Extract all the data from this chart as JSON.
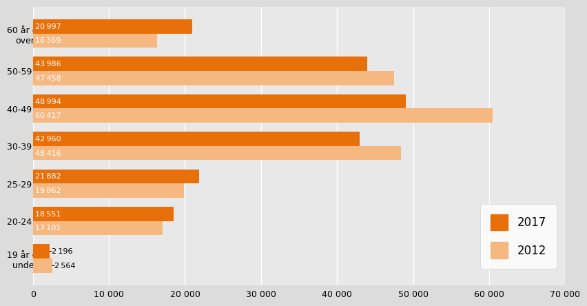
{
  "categories": [
    "19 år og\nunder",
    "20-24 år",
    "25-29 år",
    "30-39 år",
    "40-49 år",
    "50-59 år",
    "60 år og\nover"
  ],
  "values_2017": [
    2196,
    18551,
    21882,
    42960,
    48994,
    43986,
    20997
  ],
  "values_2012": [
    2564,
    17101,
    19862,
    48416,
    60417,
    47458,
    16369
  ],
  "color_2017": "#E8700A",
  "color_2012": "#F5B880",
  "bar_height": 0.38,
  "xlim": [
    0,
    70000
  ],
  "xticks": [
    0,
    10000,
    20000,
    30000,
    40000,
    50000,
    60000,
    70000
  ],
  "xtick_labels": [
    "0",
    "10 000",
    "20 000",
    "30 000",
    "40 000",
    "50 000",
    "60 000",
    "70 000"
  ],
  "legend_labels": [
    "2017",
    "2012"
  ],
  "bg_color": "#DCDCDC",
  "plot_bg_color": "#E8E8E8",
  "label_fontsize": 8,
  "tick_fontsize": 9,
  "legend_fontsize": 12,
  "small_val_threshold": 5000
}
